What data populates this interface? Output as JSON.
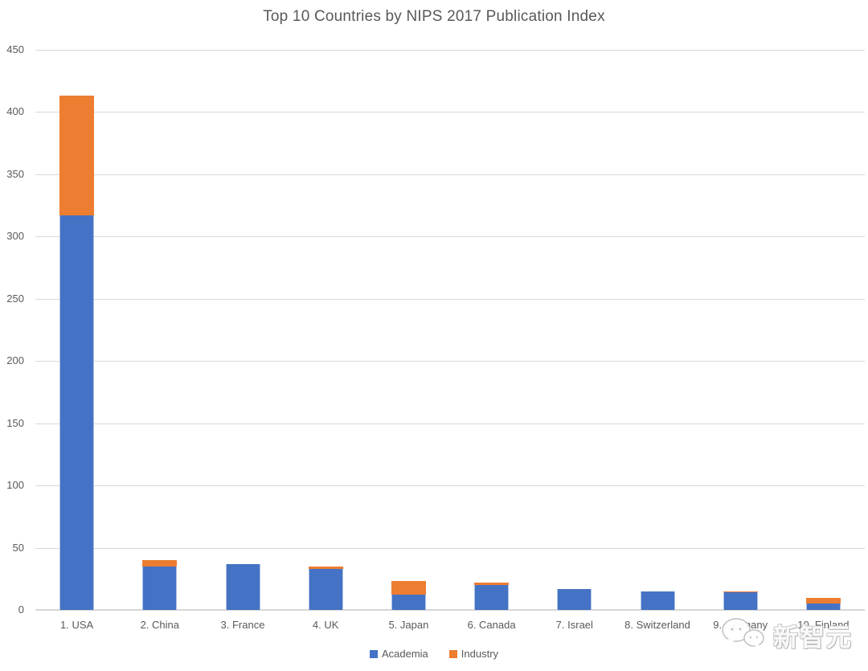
{
  "chart_data": {
    "type": "bar",
    "stacked": true,
    "title": "Top 10 Countries by NIPS 2017 Publication Index",
    "categories": [
      "1. USA",
      "2. China",
      "3. France",
      "4. UK",
      "5. Japan",
      "6. Canada",
      "7. Israel",
      "8. Switzerland",
      "9. Germany",
      "10. Finland"
    ],
    "series": [
      {
        "name": "Academia",
        "color": "#4472C4",
        "values": [
          317,
          35,
          37,
          33,
          12,
          20,
          17,
          15,
          14,
          5
        ]
      },
      {
        "name": "Industry",
        "color": "#ED7D31",
        "values": [
          96,
          5,
          0,
          2,
          11,
          2,
          0,
          0,
          1,
          5
        ]
      }
    ],
    "totals": [
      413,
      40,
      37,
      35,
      23,
      22,
      17,
      15,
      15,
      10
    ],
    "xlabel": "",
    "ylabel": "",
    "ylim": [
      0,
      450
    ],
    "yticks": [
      0,
      50,
      100,
      150,
      200,
      250,
      300,
      350,
      400,
      450
    ],
    "grid": "horizontal",
    "legend_position": "bottom"
  },
  "colors": {
    "academia": "#4472C4",
    "industry": "#ED7D31",
    "gridline": "#D9D9D9",
    "axis_text": "#595959",
    "title_text": "#595959",
    "background": "#FFFFFF"
  },
  "watermark": {
    "text": "新智元",
    "icon": "speech-bubbles-icon"
  }
}
